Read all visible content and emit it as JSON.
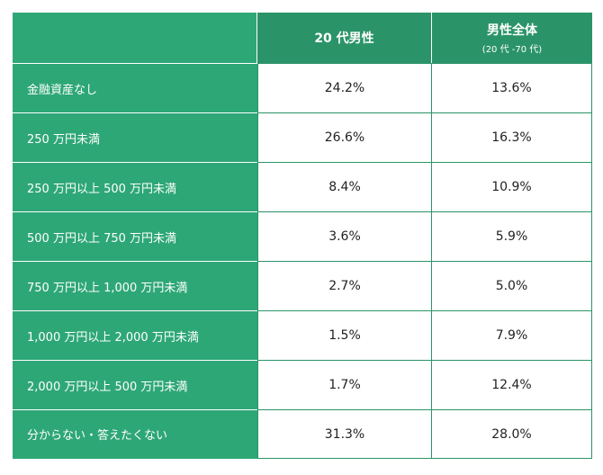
{
  "header": {
    "col_a": "20 代男性",
    "col_b": "男性全体",
    "col_b_sub": "(20 代 -70 代)"
  },
  "rows": [
    {
      "label": "金融資産なし",
      "a": "24.2%",
      "b": "13.6%"
    },
    {
      "label": "250 万円未満",
      "a": "26.6%",
      "b": "16.3%"
    },
    {
      "label": "250 万円以上 500 万円未満",
      "a": "8.4%",
      "b": "10.9%"
    },
    {
      "label": "500 万円以上 750 万円未満",
      "a": "3.6%",
      "b": "5.9%"
    },
    {
      "label": "750 万円以上 1,000 万円未満",
      "a": "2.7%",
      "b": "5.0%"
    },
    {
      "label": "1,000 万円以上 2,000 万円未満",
      "a": "1.5%",
      "b": "7.9%"
    },
    {
      "label": "2,000 万円以上 500 万円未満",
      "a": "1.7%",
      "b": "12.4%"
    },
    {
      "label": "分からない・答えたくない",
      "a": "31.3%",
      "b": "28.0%"
    }
  ],
  "colors": {
    "header_green": "#2a9468",
    "label_green": "#2ea777"
  }
}
